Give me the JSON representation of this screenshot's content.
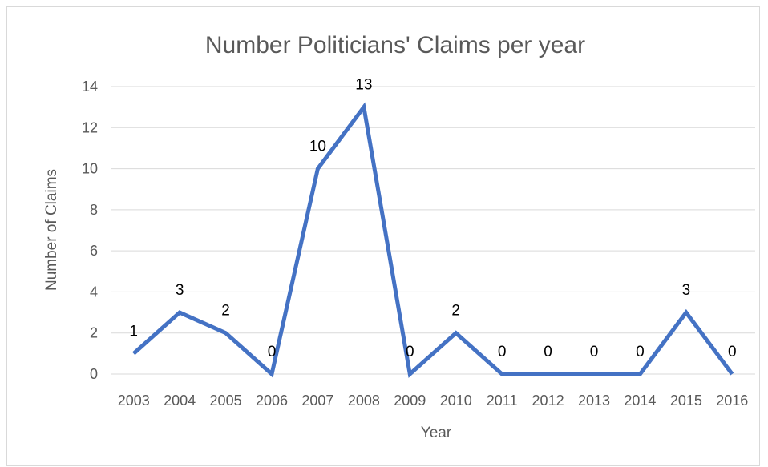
{
  "chart_data": {
    "type": "line",
    "title": "Number Politicians' Claims per year",
    "xlabel": "Year",
    "ylabel": "Number of Claims",
    "categories": [
      "2003",
      "2004",
      "2005",
      "2006",
      "2007",
      "2008",
      "2009",
      "2010",
      "2011",
      "2012",
      "2013",
      "2014",
      "2015",
      "2016"
    ],
    "series": [
      {
        "values": [
          1,
          3,
          2,
          0,
          10,
          13,
          0,
          2,
          0,
          0,
          0,
          0,
          3,
          0
        ]
      }
    ],
    "ylim": [
      0,
      14
    ],
    "yticks": [
      "0",
      "2",
      "4",
      "6",
      "8",
      "10",
      "12",
      "14"
    ],
    "data_labels": true,
    "grid": true,
    "line_color": "#4472c4"
  }
}
